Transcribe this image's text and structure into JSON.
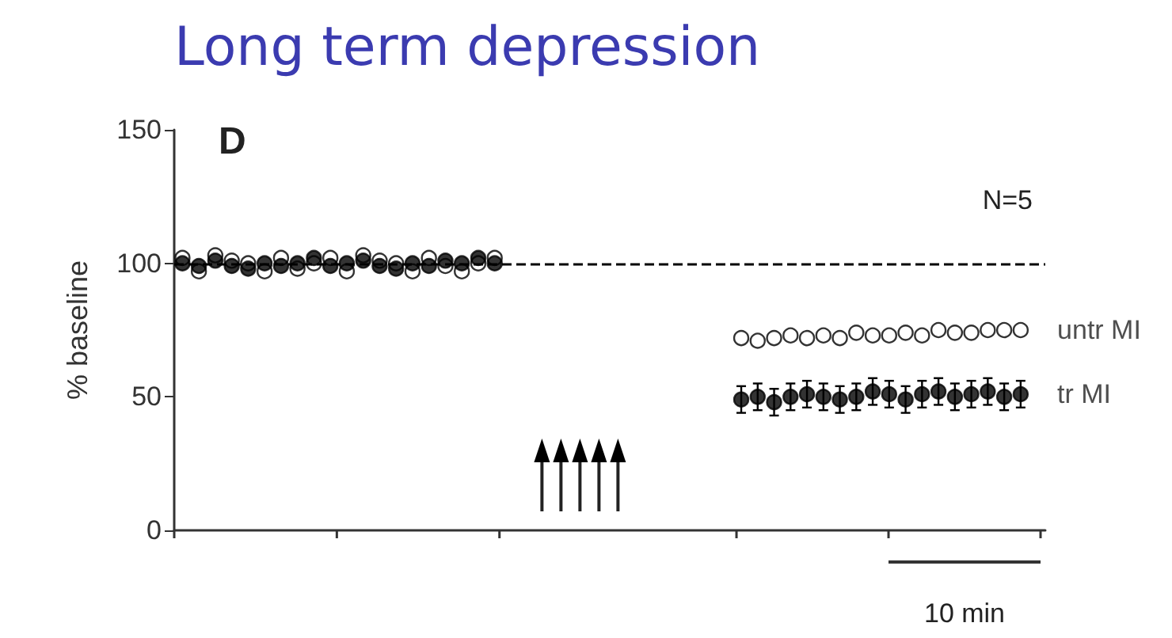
{
  "chart_data": {
    "type": "scatter",
    "title": "Long term depression",
    "ylabel": "% baseline",
    "annotations": [
      "D",
      "N=5",
      "10 min"
    ],
    "categories": [
      null,
      null,
      null,
      null,
      null,
      null,
      null,
      null,
      null,
      null,
      null,
      null,
      null,
      null,
      null,
      null,
      null,
      null,
      null,
      null,
      null,
      null,
      null,
      null,
      null,
      null,
      null,
      null,
      null,
      null,
      null,
      null,
      null,
      null,
      null,
      null,
      null,
      null,
      null,
      null,
      null,
      null,
      null,
      null,
      null,
      null,
      null,
      null,
      null,
      null,
      null,
      null,
      null
    ],
    "series": [
      {
        "name": "untr MI",
        "color": "#ffffff",
        "values": [
          102,
          97,
          103,
          101,
          100,
          97,
          102,
          98,
          100,
          102,
          97,
          103,
          101,
          100,
          97,
          102,
          99,
          97,
          100,
          102,
          null,
          null,
          null,
          null,
          null,
          null,
          null,
          null,
          null,
          null,
          null,
          null,
          null,
          null,
          72,
          71,
          72,
          73,
          72,
          73,
          72,
          74,
          73,
          73,
          74,
          73,
          75,
          74,
          74,
          75,
          75,
          75,
          null
        ]
      },
      {
        "name": "tr MI",
        "color": "#000000",
        "values": [
          100,
          99,
          101,
          99,
          98,
          100,
          99,
          100,
          102,
          99,
          100,
          101,
          99,
          98,
          100,
          99,
          101,
          100,
          102,
          100,
          null,
          null,
          null,
          null,
          null,
          null,
          null,
          null,
          null,
          null,
          null,
          null,
          null,
          null,
          49,
          50,
          48,
          50,
          51,
          50,
          49,
          50,
          52,
          51,
          49,
          51,
          52,
          50,
          51,
          52,
          50,
          51,
          null
        ],
        "errors": [
          null,
          null,
          null,
          null,
          null,
          null,
          null,
          null,
          null,
          null,
          null,
          null,
          null,
          null,
          null,
          null,
          null,
          null,
          null,
          null,
          null,
          null,
          null,
          null,
          null,
          null,
          null,
          null,
          null,
          null,
          null,
          null,
          null,
          null,
          5,
          5,
          5,
          5,
          5,
          5,
          5,
          5,
          5,
          5,
          5,
          5,
          5,
          5,
          5,
          5,
          5,
          5,
          null
        ]
      }
    ],
    "ylim": [
      0,
      150
    ],
    "yticks": [
      0,
      50,
      100,
      150
    ],
    "ref_lines": [
      {
        "axis": "y",
        "value": 100,
        "color": "#000000",
        "line_style": "dashed"
      }
    ],
    "marker": "circle",
    "legend": "right",
    "tick_labels": "y"
  }
}
